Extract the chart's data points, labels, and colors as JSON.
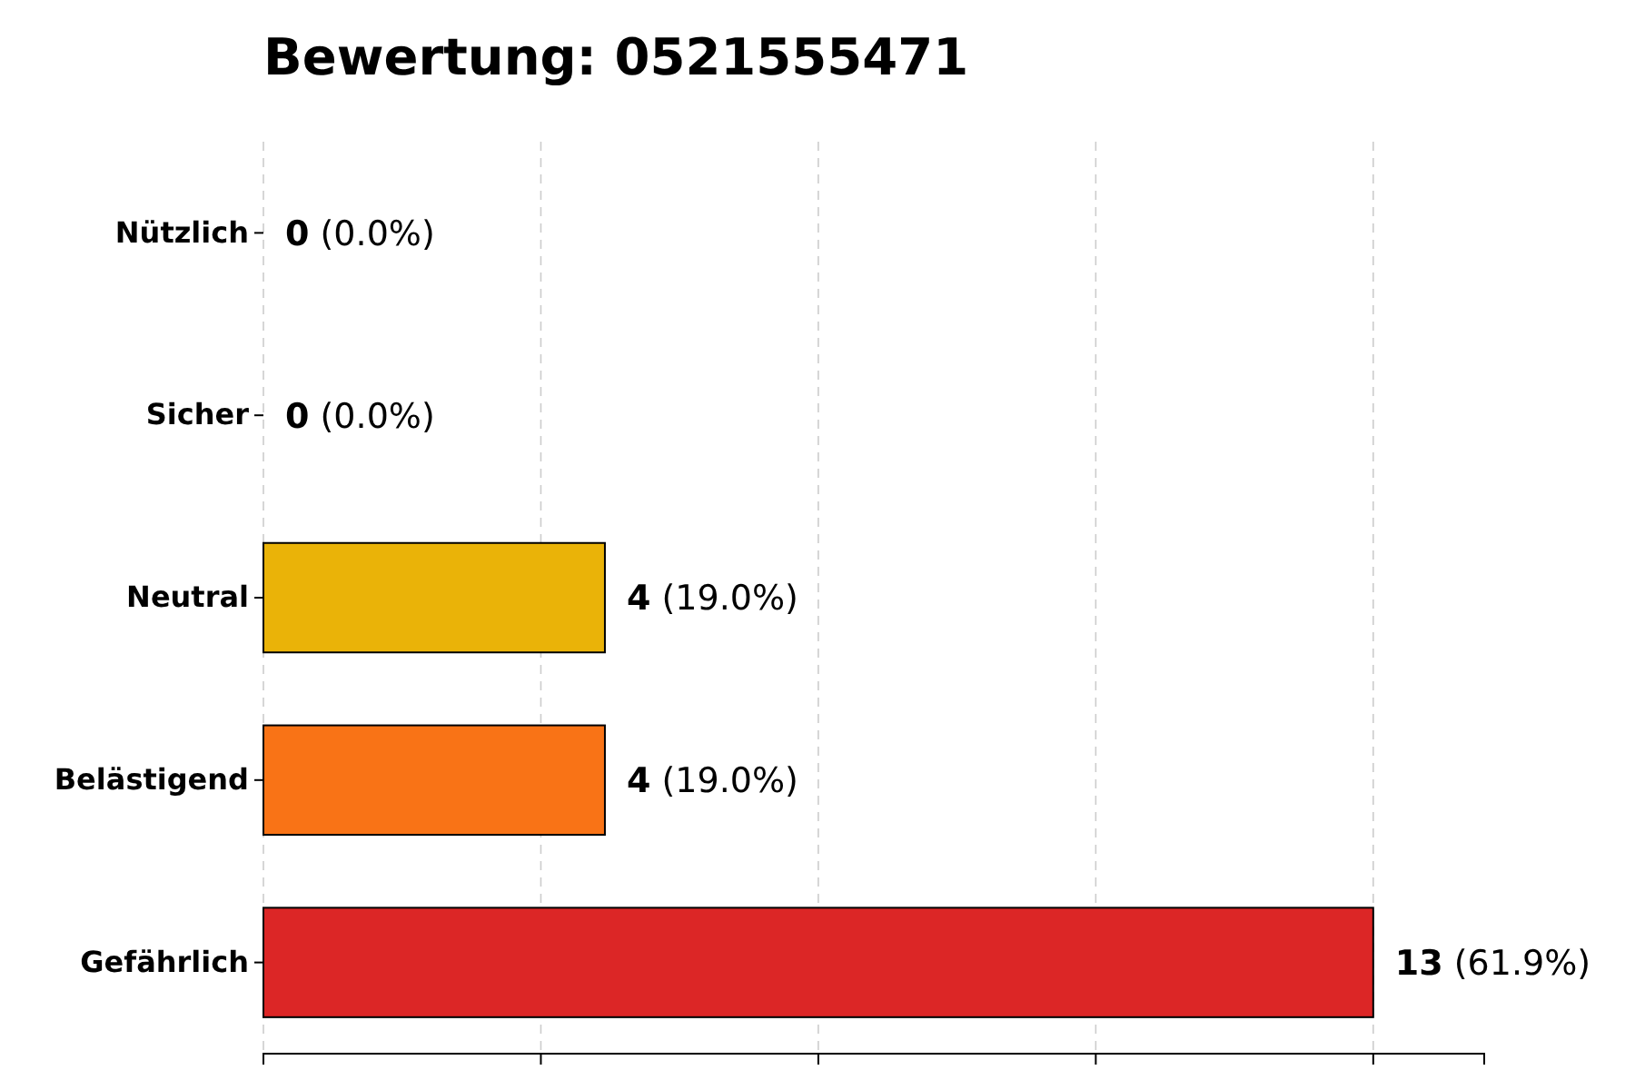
{
  "chart_data": {
    "type": "bar",
    "orientation": "horizontal",
    "title": "Bewertung: 0521555471",
    "categories": [
      "Nützlich",
      "Sicher",
      "Neutral",
      "Belästigend",
      "Gefährlich"
    ],
    "values": [
      0,
      0,
      4,
      4,
      13
    ],
    "colors": [
      "#16a34a",
      "#3b82f6",
      "#eab308",
      "#f97316",
      "#dc2626"
    ],
    "value_labels": [
      "0 (0.0%)",
      "0 (0.0%)",
      "4 (19.0%)",
      "4 (19.0%)",
      "13 (61.9%)"
    ],
    "xlim": [
      0,
      14.3
    ],
    "xticks": [
      {
        "value": 0,
        "label": null
      },
      {
        "value": 3.25,
        "label": null
      },
      {
        "value": 6.5,
        "label": null
      },
      {
        "value": 9.75,
        "label": null
      },
      {
        "value": 13,
        "label": null
      }
    ],
    "grid": "x",
    "tick_labels": "y"
  }
}
